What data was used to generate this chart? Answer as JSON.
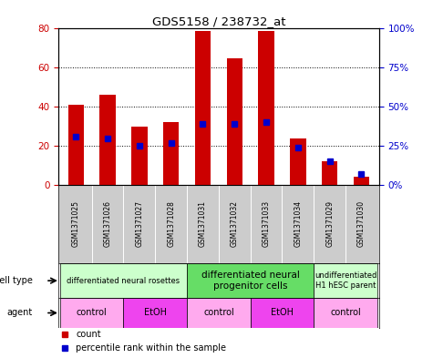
{
  "title": "GDS5158 / 238732_at",
  "samples": [
    "GSM1371025",
    "GSM1371026",
    "GSM1371027",
    "GSM1371028",
    "GSM1371031",
    "GSM1371032",
    "GSM1371033",
    "GSM1371034",
    "GSM1371029",
    "GSM1371030"
  ],
  "counts": [
    41,
    46,
    30,
    32,
    79,
    65,
    79,
    24,
    12,
    4
  ],
  "percentile_ranks": [
    31,
    30,
    25,
    27,
    39,
    39,
    40,
    24,
    15,
    7
  ],
  "ylim_left": [
    0,
    80
  ],
  "ylim_right": [
    0,
    100
  ],
  "yticks_left": [
    0,
    20,
    40,
    60,
    80
  ],
  "ytick_labels_right": [
    "0%",
    "25%",
    "50%",
    "75%",
    "100%"
  ],
  "yticks_right": [
    0,
    25,
    50,
    75,
    100
  ],
  "bar_color": "#cc0000",
  "dot_color": "#0000cc",
  "cell_type_groups": [
    {
      "label": "differentiated neural rosettes",
      "start": 0,
      "end": 3,
      "color": "#ccffcc",
      "fontsize": 6
    },
    {
      "label": "differentiated neural\nprogenitor cells",
      "start": 4,
      "end": 7,
      "color": "#66dd66",
      "fontsize": 7.5
    },
    {
      "label": "undifferentiated\nH1 hESC parent",
      "start": 8,
      "end": 9,
      "color": "#ccffcc",
      "fontsize": 6
    }
  ],
  "agent_groups": [
    {
      "label": "control",
      "start": 0,
      "end": 1,
      "color": "#ffaaee"
    },
    {
      "label": "EtOH",
      "start": 2,
      "end": 3,
      "color": "#ee44ee"
    },
    {
      "label": "control",
      "start": 4,
      "end": 5,
      "color": "#ffaaee"
    },
    {
      "label": "EtOH",
      "start": 6,
      "end": 7,
      "color": "#ee44ee"
    },
    {
      "label": "control",
      "start": 8,
      "end": 9,
      "color": "#ffaaee"
    }
  ],
  "row_label_cell_type": "cell type",
  "row_label_agent": "agent",
  "sample_bg_color": "#cccccc",
  "legend_count_color": "#cc0000",
  "legend_dot_color": "#0000cc",
  "bar_width": 0.5
}
